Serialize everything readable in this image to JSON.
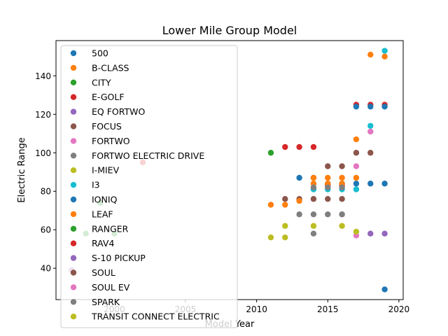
{
  "chart_data": {
    "type": "scatter",
    "title": "Lower Mile Group Model",
    "xlabel": "Model Year",
    "ylabel": "Electric Range",
    "xlim": [
      1995.9,
      2020.3
    ],
    "ylim": [
      23.7,
      158.3
    ],
    "xticks": [
      2000,
      2005,
      2010,
      2015,
      2020
    ],
    "yticks": [
      40,
      60,
      80,
      100,
      120,
      140
    ],
    "grid": false,
    "legend_position": "top-left",
    "series": [
      {
        "name": "500",
        "color": "#1f77b4",
        "points": [
          [
            2013,
            87
          ],
          [
            2014,
            87
          ],
          [
            2015,
            84
          ],
          [
            2016,
            84
          ],
          [
            2017,
            84
          ],
          [
            2018,
            84
          ],
          [
            2019,
            84
          ]
        ]
      },
      {
        "name": "B-CLASS",
        "color": "#ff7f0e",
        "points": [
          [
            2014,
            87
          ],
          [
            2015,
            87
          ],
          [
            2016,
            87
          ],
          [
            2017,
            87
          ]
        ]
      },
      {
        "name": "CITY",
        "color": "#2ca02c",
        "points": [
          [
            2011,
            100
          ]
        ]
      },
      {
        "name": "E-GOLF",
        "color": "#d62728",
        "points": [
          [
            2015,
            83
          ],
          [
            2016,
            83
          ],
          [
            2017,
            125
          ],
          [
            2018,
            125
          ],
          [
            2019,
            125
          ]
        ]
      },
      {
        "name": "EQ FORTWO",
        "color": "#9467bd",
        "points": [
          [
            2018,
            58
          ],
          [
            2019,
            58
          ]
        ]
      },
      {
        "name": "FOCUS",
        "color": "#8c564b",
        "points": [
          [
            2012,
            76
          ],
          [
            2013,
            76
          ],
          [
            2014,
            76
          ],
          [
            2015,
            76
          ],
          [
            2016,
            76
          ],
          [
            2017,
            100
          ],
          [
            2018,
            100
          ]
        ]
      },
      {
        "name": "FORTWO",
        "color": "#e377c2",
        "points": [
          [
            2016,
            68
          ],
          [
            2017,
            57
          ],
          [
            2017,
            93
          ],
          [
            2018,
            111
          ]
        ]
      },
      {
        "name": "FORTWO ELECTRIC DRIVE",
        "color": "#7f7f7f",
        "points": [
          [
            2013,
            68
          ],
          [
            2014,
            68
          ],
          [
            2015,
            68
          ],
          [
            2016,
            68
          ],
          [
            2014,
            58
          ]
        ]
      },
      {
        "name": "I-MIEV",
        "color": "#bcbd22",
        "points": [
          [
            2011,
            56
          ],
          [
            2012,
            62
          ],
          [
            2014,
            62
          ],
          [
            2016,
            62
          ],
          [
            2017,
            59
          ],
          [
            2012,
            56
          ]
        ]
      },
      {
        "name": "I3",
        "color": "#17becf",
        "points": [
          [
            2014,
            81
          ],
          [
            2015,
            81
          ],
          [
            2016,
            81
          ],
          [
            2017,
            81
          ],
          [
            2018,
            114
          ],
          [
            2019,
            153
          ]
        ]
      },
      {
        "name": "IONIQ",
        "color": "#1f77b4",
        "points": [
          [
            2017,
            124
          ],
          [
            2018,
            124
          ],
          [
            2019,
            124
          ],
          [
            2019,
            29
          ]
        ]
      },
      {
        "name": "LEAF",
        "color": "#ff7f0e",
        "points": [
          [
            2011,
            73
          ],
          [
            2012,
            73
          ],
          [
            2013,
            75
          ],
          [
            2014,
            84
          ],
          [
            2015,
            84
          ],
          [
            2016,
            84
          ],
          [
            2017,
            107
          ],
          [
            2018,
            151
          ],
          [
            2019,
            150
          ]
        ]
      },
      {
        "name": "RANGER",
        "color": "#2ca02c",
        "points": [
          [
            1998,
            58
          ],
          [
            1999,
            74
          ],
          [
            2000,
            58
          ]
        ]
      },
      {
        "name": "RAV4",
        "color": "#d62728",
        "points": [
          [
            2002,
            95
          ],
          [
            2012,
            103
          ],
          [
            2013,
            103
          ],
          [
            2014,
            103
          ]
        ]
      },
      {
        "name": "S-10 PICKUP",
        "color": "#9467bd",
        "points": [
          [
            1997,
            39
          ]
        ]
      },
      {
        "name": "SOUL",
        "color": "#8c564b",
        "points": [
          [
            2015,
            93
          ],
          [
            2016,
            93
          ]
        ]
      },
      {
        "name": "SOUL EV",
        "color": "#e377c2",
        "points": []
      },
      {
        "name": "SPARK",
        "color": "#7f7f7f",
        "points": [
          [
            2014,
            82
          ],
          [
            2015,
            82
          ],
          [
            2016,
            82
          ]
        ]
      },
      {
        "name": "TRANSIT CONNECT ELECTRIC",
        "color": "#bcbd22",
        "points": []
      }
    ]
  }
}
